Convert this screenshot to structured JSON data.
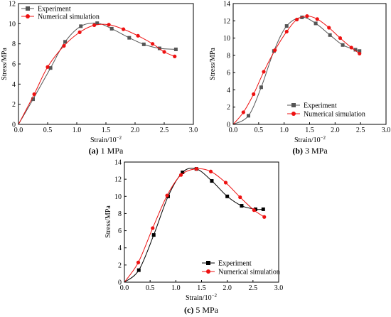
{
  "colors": {
    "experiment": "#555555",
    "simulation": "#ee1111",
    "experiment_panel_c": "#000000"
  },
  "chart_data": [
    {
      "type": "line",
      "caption_letter": "(a)",
      "caption_text": " 1 MPa",
      "xlabel": "Strain/10",
      "xlabel_exp": "−2",
      "ylabel": "Stress/MPa",
      "xlim": [
        0,
        3.0
      ],
      "ylim": [
        0,
        12
      ],
      "xticks": [
        0.0,
        0.5,
        1.0,
        1.5,
        2.0,
        2.5,
        3.0
      ],
      "xtick_labels": [
        "0.0",
        "0.5",
        "1.0",
        "1.5",
        "2.0",
        "2.5",
        "3.0"
      ],
      "yticks": [
        0,
        2,
        4,
        6,
        8,
        10,
        12
      ],
      "ytick_labels": [
        "0",
        "2",
        "4",
        "6",
        "8",
        "10",
        "12"
      ],
      "legend_position": "top-left",
      "series": [
        {
          "name": "Experiment",
          "marker": "square",
          "x": [
            0,
            0.25,
            0.55,
            0.8,
            1.07,
            1.35,
            1.6,
            1.9,
            2.15,
            2.42,
            2.7
          ],
          "y": [
            0,
            2.5,
            5.6,
            8.2,
            9.75,
            10.05,
            9.5,
            8.6,
            7.95,
            7.55,
            7.45
          ]
        },
        {
          "name": "Numerical simulation",
          "marker": "circle",
          "x": [
            0,
            0.27,
            0.5,
            0.78,
            1.05,
            1.3,
            1.55,
            1.8,
            2.05,
            2.3,
            2.5,
            2.68
          ],
          "y": [
            0,
            3.0,
            5.7,
            7.8,
            9.15,
            9.85,
            9.9,
            9.45,
            8.8,
            8.0,
            7.2,
            6.75
          ]
        }
      ]
    },
    {
      "type": "line",
      "caption_letter": "(b)",
      "caption_text": " 3 MPa",
      "xlabel": "Strain/10",
      "xlabel_exp": "−2",
      "ylabel": "Stress/MPa",
      "xlim": [
        0,
        3.0
      ],
      "ylim": [
        0,
        14
      ],
      "xticks": [
        0.0,
        0.5,
        1.0,
        1.5,
        2.0,
        2.5,
        3.0
      ],
      "xtick_labels": [
        "0.0",
        "0.5",
        "1.0",
        "1.5",
        "2.0",
        "2.5",
        "3.0"
      ],
      "yticks": [
        0,
        2,
        4,
        6,
        8,
        10,
        12,
        14
      ],
      "ytick_labels": [
        "0",
        "2",
        "4",
        "6",
        "8",
        "10",
        "12",
        "14"
      ],
      "legend_position": "bottom-right",
      "series": [
        {
          "name": "Experiment",
          "marker": "square",
          "x": [
            0,
            0.3,
            0.55,
            0.8,
            1.05,
            1.35,
            1.62,
            1.9,
            2.15,
            2.4,
            2.48
          ],
          "y": [
            0,
            1.0,
            4.3,
            8.5,
            11.4,
            12.4,
            11.7,
            10.35,
            9.2,
            8.65,
            8.5
          ]
        },
        {
          "name": "Numerical simulation",
          "marker": "circle",
          "x": [
            0,
            0.2,
            0.4,
            0.6,
            0.82,
            1.05,
            1.25,
            1.45,
            1.65,
            1.88,
            2.1,
            2.32,
            2.48
          ],
          "y": [
            0,
            1.4,
            3.5,
            6.1,
            8.6,
            10.75,
            12.15,
            12.55,
            12.2,
            11.2,
            10.0,
            8.9,
            8.2
          ]
        }
      ]
    },
    {
      "type": "line",
      "caption_letter": "(c)",
      "caption_text": " 5 MPa",
      "xlabel": "Strain/10",
      "xlabel_exp": "−2",
      "ylabel": "Stress/MPa",
      "xlim": [
        0,
        3.0
      ],
      "ylim": [
        0,
        14
      ],
      "xticks": [
        0.0,
        0.5,
        1.0,
        1.5,
        2.0,
        2.5,
        3.0
      ],
      "xtick_labels": [
        "0.0",
        "0.5",
        "1.0",
        "1.5",
        "2.0",
        "2.5",
        "3.0"
      ],
      "yticks": [
        0,
        2,
        4,
        6,
        8,
        10,
        12,
        14
      ],
      "ytick_labels": [
        "0",
        "2",
        "4",
        "6",
        "8",
        "10",
        "12",
        "14"
      ],
      "legend_position": "bottom-right",
      "series": [
        {
          "name": "Experiment",
          "marker": "square",
          "x": [
            0,
            0.28,
            0.57,
            0.85,
            1.13,
            1.4,
            1.7,
            2.0,
            2.28,
            2.55,
            2.7
          ],
          "y": [
            0,
            1.4,
            5.5,
            10.0,
            12.8,
            13.2,
            11.8,
            10.0,
            8.9,
            8.5,
            8.5
          ]
        },
        {
          "name": "Numerical simulation",
          "marker": "circle",
          "x": [
            0,
            0.27,
            0.55,
            0.83,
            1.1,
            1.4,
            1.68,
            1.97,
            2.25,
            2.52,
            2.72
          ],
          "y": [
            0,
            2.3,
            6.3,
            10.1,
            12.5,
            13.2,
            12.9,
            11.6,
            9.9,
            8.4,
            7.6
          ]
        }
      ]
    }
  ]
}
